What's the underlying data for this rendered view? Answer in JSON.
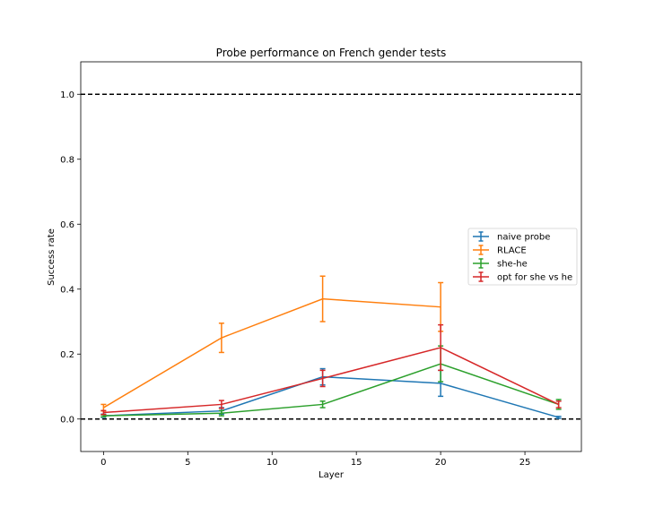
{
  "chart_data": {
    "type": "line",
    "title": "Probe performance on French gender tests",
    "xlabel": "Layer",
    "ylabel": "Success rate",
    "xlim": [
      -1.35,
      28.35
    ],
    "ylim": [
      -0.1,
      1.1
    ],
    "x_ticks": [
      0,
      5,
      10,
      15,
      20,
      25
    ],
    "y_ticks": [
      0.0,
      0.2,
      0.4,
      0.6,
      0.8,
      1.0
    ],
    "x_tick_labels": [
      "0",
      "5",
      "10",
      "15",
      "20",
      "25"
    ],
    "y_tick_labels": [
      "0.0",
      "0.2",
      "0.4",
      "0.6",
      "0.8",
      "1.0"
    ],
    "reference_lines": [
      0.0,
      1.0
    ],
    "legend_position": "center-right",
    "grid": false,
    "series": [
      {
        "name": "naive probe",
        "color": "#1f77b4",
        "x": [
          0,
          7,
          13,
          20,
          27
        ],
        "y": [
          0.01,
          0.025,
          0.13,
          0.11,
          0.005
        ],
        "yerr": [
          0.005,
          0.01,
          0.025,
          0.04,
          0.003
        ]
      },
      {
        "name": "RLACE",
        "color": "#ff7f0e",
        "x": [
          0,
          7,
          13,
          20
        ],
        "y": [
          0.035,
          0.25,
          0.37,
          0.345
        ],
        "yerr": [
          0.01,
          0.045,
          0.07,
          0.075
        ]
      },
      {
        "name": "she-he",
        "color": "#2ca02c",
        "x": [
          0,
          7,
          13,
          20,
          27
        ],
        "y": [
          0.01,
          0.018,
          0.045,
          0.17,
          0.045
        ],
        "yerr": [
          0.003,
          0.008,
          0.01,
          0.055,
          0.015
        ]
      },
      {
        "name": "opt for she vs he",
        "color": "#d62728",
        "x": [
          0,
          7,
          13,
          20,
          27
        ],
        "y": [
          0.02,
          0.045,
          0.125,
          0.22,
          0.045
        ],
        "yerr": [
          0.006,
          0.012,
          0.025,
          0.07,
          0.01
        ]
      }
    ]
  }
}
